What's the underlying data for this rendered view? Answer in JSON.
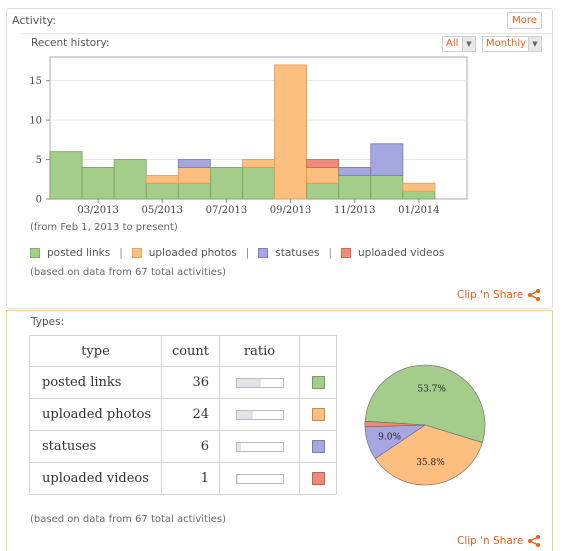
{
  "colors": {
    "accent": "#e8601c",
    "posted_links": "#a4cd8c",
    "uploaded_photos": "#fdbf7f",
    "statuses": "#a6a6e0",
    "uploaded_videos": "#f08a7a"
  },
  "activity": {
    "title": "Activity:",
    "more_label": "More",
    "recent_history_label": "Recent history:",
    "filter_all": "All",
    "filter_period": "Monthly",
    "date_range_note": "(from Feb 1, 2013 to present)",
    "legend": [
      {
        "label": "posted links",
        "color": "#a4cd8c"
      },
      {
        "label": "uploaded photos",
        "color": "#fdbf7f"
      },
      {
        "label": "statuses",
        "color": "#a6a6e0"
      },
      {
        "label": "uploaded videos",
        "color": "#f08a7a"
      }
    ],
    "legend_sep": "|",
    "based_on_note": "(based on data from 67 total activities)",
    "clip_share_label": "Clip 'n Share",
    "share_icon": "share-icon"
  },
  "chart_data": {
    "type": "bar",
    "stacked": true,
    "categories": [
      "2013-02",
      "2013-03",
      "2013-04",
      "2013-05",
      "2013-06",
      "2013-07",
      "2013-08",
      "2013-09",
      "2013-10",
      "2013-11",
      "2013-12",
      "2014-01",
      "2014-02"
    ],
    "x_tick_labels": [
      "03/2013",
      "05/2013",
      "07/2013",
      "09/2013",
      "11/2013",
      "01/2014"
    ],
    "x_tick_categories": [
      "2013-03",
      "2013-05",
      "2013-07",
      "2013-09",
      "2013-11",
      "2014-01"
    ],
    "y_ticks": [
      0,
      5,
      10,
      15
    ],
    "ylim": [
      0,
      18
    ],
    "series": [
      {
        "name": "posted links",
        "color": "#a4cd8c",
        "values": [
          6,
          4,
          5,
          2,
          2,
          4,
          4,
          0,
          2,
          3,
          3,
          1,
          0
        ]
      },
      {
        "name": "uploaded photos",
        "color": "#fdbf7f",
        "values": [
          0,
          0,
          0,
          1,
          2,
          0,
          1,
          17,
          2,
          0,
          0,
          1,
          0
        ]
      },
      {
        "name": "statuses",
        "color": "#a6a6e0",
        "values": [
          0,
          0,
          0,
          0,
          1,
          0,
          0,
          0,
          0,
          1,
          4,
          0,
          0
        ]
      },
      {
        "name": "uploaded videos",
        "color": "#f08a7a",
        "values": [
          0,
          0,
          0,
          0,
          0,
          0,
          0,
          0,
          1,
          0,
          0,
          0,
          0
        ]
      }
    ],
    "grid": true
  },
  "types": {
    "title": "Types:",
    "columns": [
      "type",
      "count",
      "ratio",
      ""
    ],
    "rows": [
      {
        "type": "posted links",
        "count": "36",
        "ratio": 0.537,
        "color": "#a4cd8c"
      },
      {
        "type": "uploaded photos",
        "count": "24",
        "ratio": 0.358,
        "color": "#fdbf7f"
      },
      {
        "type": "statuses",
        "count": "6",
        "ratio": 0.09,
        "color": "#a6a6e0"
      },
      {
        "type": "uploaded videos",
        "count": "1",
        "ratio": 0.015,
        "color": "#f08a7a"
      }
    ],
    "pie": {
      "type": "pie",
      "slices": [
        {
          "name": "posted links",
          "value": 36,
          "color": "#a4cd8c",
          "label": "53.7%"
        },
        {
          "name": "uploaded photos",
          "value": 24,
          "color": "#fdbf7f",
          "label": "35.8%"
        },
        {
          "name": "statuses",
          "value": 6,
          "color": "#a6a6e0",
          "label": "9.0%"
        },
        {
          "name": "uploaded videos",
          "value": 1,
          "color": "#f08a7a",
          "label": ""
        }
      ]
    },
    "based_on_note": "(based on data from 67 total activities)",
    "clip_share_label": "Clip 'n Share"
  }
}
